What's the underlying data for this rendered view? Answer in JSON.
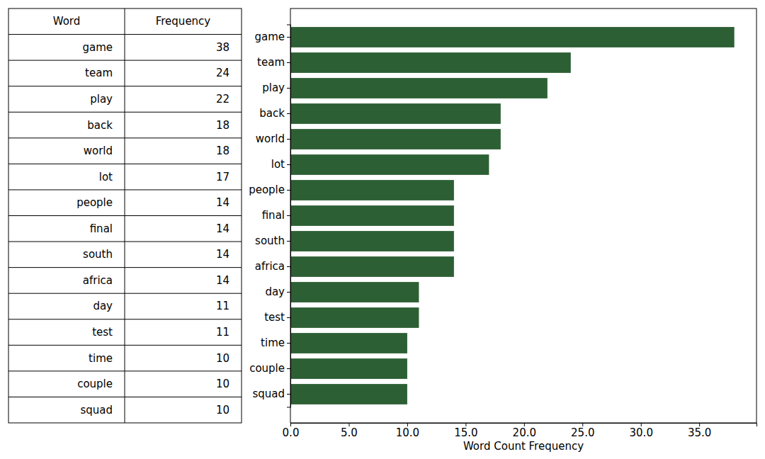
{
  "table": {
    "columns": [
      "Word",
      "Frequency"
    ],
    "rows": [
      [
        "game",
        38
      ],
      [
        "team",
        24
      ],
      [
        "play",
        22
      ],
      [
        "back",
        18
      ],
      [
        "world",
        18
      ],
      [
        "lot",
        17
      ],
      [
        "people",
        14
      ],
      [
        "final",
        14
      ],
      [
        "south",
        14
      ],
      [
        "africa",
        14
      ],
      [
        "day",
        11
      ],
      [
        "test",
        11
      ],
      [
        "time",
        10
      ],
      [
        "couple",
        10
      ],
      [
        "squad",
        10
      ]
    ]
  },
  "chart_data": {
    "type": "bar",
    "orientation": "horizontal",
    "x_label": "Word Count Frequency",
    "categories": [
      "game",
      "team",
      "play",
      "back",
      "world",
      "lot",
      "people",
      "final",
      "south",
      "africa",
      "day",
      "test",
      "time",
      "couple",
      "squad"
    ],
    "values": [
      38,
      24,
      22,
      18,
      18,
      17,
      14,
      14,
      14,
      14,
      11,
      11,
      10,
      10,
      10
    ],
    "color": "#2d5f35",
    "xlim": [
      0,
      39.9
    ],
    "xticks": [
      {
        "value": 0,
        "label": "0.0"
      },
      {
        "value": 5,
        "label": "5.0"
      },
      {
        "value": 10,
        "label": "10.0"
      },
      {
        "value": 15,
        "label": "15.0"
      },
      {
        "value": 20,
        "label": "20.0"
      },
      {
        "value": 25,
        "label": "25.0"
      },
      {
        "value": 30,
        "label": "30.0"
      },
      {
        "value": 35,
        "label": "35.0"
      }
    ],
    "grid": false
  }
}
